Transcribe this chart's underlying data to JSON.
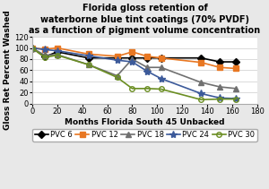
{
  "title": "Florida gloss retention of\nwaterborne blue tint coatings (70% PVDF)\nas a function of pigment volume concentration",
  "xlabel": "Months Florida South 45 Unbacked",
  "ylabel": "Gloss Ret Percent Washed",
  "xlim": [
    0,
    180
  ],
  "ylim": [
    0,
    120
  ],
  "xticks": [
    0,
    20,
    40,
    60,
    80,
    100,
    120,
    140,
    160,
    180
  ],
  "yticks": [
    0,
    20,
    40,
    60,
    80,
    100,
    120
  ],
  "series": {
    "PVC 6": {
      "x": [
        0,
        10,
        20,
        45,
        68,
        80,
        92,
        103,
        135,
        150,
        163
      ],
      "y": [
        100,
        84,
        93,
        82,
        82,
        82,
        82,
        82,
        82,
        75,
        75
      ],
      "color": "#000000",
      "marker": "D",
      "markersize": 4,
      "linewidth": 1.2,
      "fillstyle": "full"
    },
    "PVC 12": {
      "x": [
        0,
        10,
        20,
        45,
        68,
        80,
        92,
        103,
        135,
        150,
        163
      ],
      "y": [
        100,
        98,
        100,
        89,
        85,
        93,
        85,
        82,
        74,
        65,
        63
      ],
      "color": "#E87722",
      "marker": "s",
      "markersize": 4,
      "linewidth": 1.2,
      "fillstyle": "full"
    },
    "PVC 18": {
      "x": [
        0,
        10,
        20,
        45,
        68,
        80,
        92,
        103,
        135,
        150,
        163
      ],
      "y": [
        100,
        87,
        88,
        70,
        50,
        80,
        65,
        65,
        38,
        30,
        27
      ],
      "color": "#707070",
      "marker": "^",
      "markersize": 4,
      "linewidth": 1.2,
      "fillstyle": "full"
    },
    "PVC 24": {
      "x": [
        0,
        10,
        20,
        45,
        68,
        80,
        92,
        103,
        135,
        150,
        163
      ],
      "y": [
        100,
        97,
        95,
        86,
        78,
        75,
        58,
        45,
        18,
        10,
        9
      ],
      "color": "#3C5A9A",
      "marker": "*",
      "markersize": 6,
      "linewidth": 1.2,
      "fillstyle": "full"
    },
    "PVC 30": {
      "x": [
        0,
        10,
        20,
        45,
        68,
        80,
        92,
        103,
        135,
        150,
        163
      ],
      "y": [
        100,
        83,
        87,
        70,
        47,
        27,
        27,
        26,
        7,
        8,
        8
      ],
      "color": "#6B8E23",
      "marker": "o",
      "markersize": 4,
      "linewidth": 1.2,
      "fillstyle": "none"
    }
  },
  "title_fontsize": 7.0,
  "axis_label_fontsize": 6.5,
  "tick_fontsize": 6.0,
  "legend_fontsize": 6.0,
  "bg_color": "#e8e8e8"
}
